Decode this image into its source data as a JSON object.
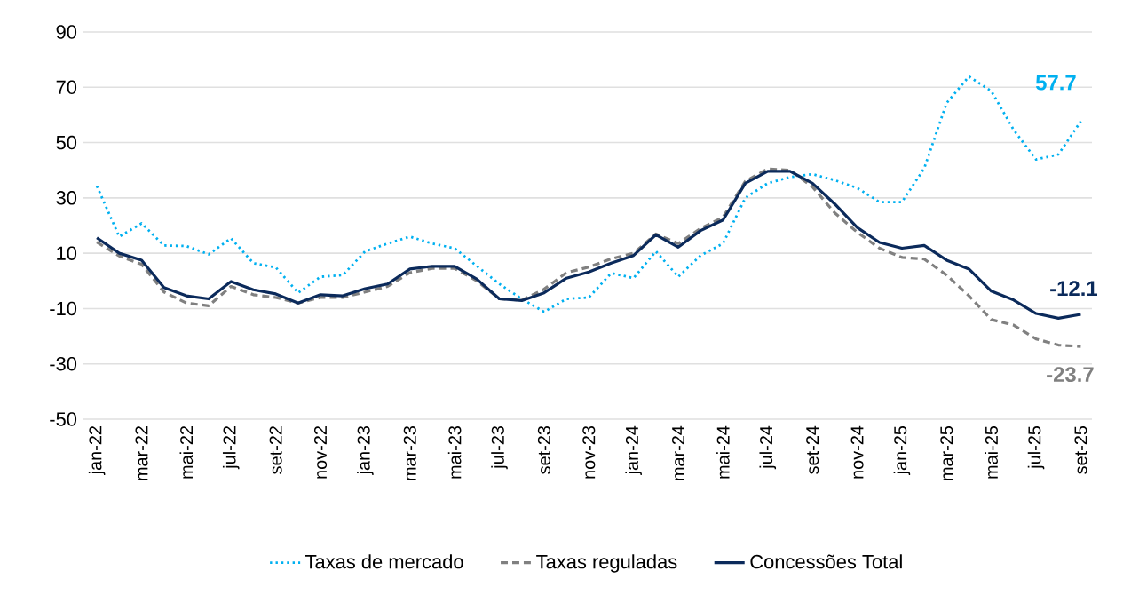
{
  "chart_data": {
    "type": "line",
    "categories": [
      "jan-22",
      null,
      "mar-22",
      null,
      "mai-22",
      null,
      "jul-22",
      null,
      "set-22",
      null,
      "nov-22",
      null,
      "jan-23",
      null,
      "mar-23",
      null,
      "mai-23",
      null,
      "jul-23",
      null,
      "set-23",
      null,
      "nov-23",
      null,
      "jan-24",
      null,
      "mar-24",
      null,
      "mai-24",
      null,
      "jul-24",
      null,
      "set-24",
      null,
      "nov-24",
      null,
      "jan-25",
      null,
      "mar-25",
      null,
      "mai-25",
      null,
      "jul-25",
      null,
      "set-25"
    ],
    "series": [
      {
        "name": "Taxas de mercado",
        "color": "#00b0f0",
        "line_style": "dotted",
        "values": [
          34.3,
          16,
          20.8,
          12.8,
          12.6,
          9.6,
          15.4,
          6.4,
          4.9,
          -4.3,
          1.5,
          2.1,
          10.7,
          13.5,
          16,
          13.5,
          11.8,
          5.3,
          -1.1,
          -6.5,
          -11.2,
          -6.5,
          -6,
          2.8,
          1,
          10.7,
          1.5,
          9.2,
          13.5,
          30,
          35.3,
          37.5,
          38.6,
          36.4,
          33.6,
          28.5,
          28.5,
          40.7,
          64.3,
          73.9,
          68.6,
          54.6,
          43.9,
          45.7,
          57.7
        ]
      },
      {
        "name": "Taxas reguladas",
        "color": "#808080",
        "line_style": "dashed",
        "values": [
          14,
          9,
          6,
          -4,
          -8,
          -9,
          -2,
          -5,
          -6,
          -8,
          -6,
          -6,
          -4,
          -2,
          3,
          4.5,
          4.5,
          0,
          -6.5,
          -7,
          -3,
          3,
          5,
          8,
          10,
          17,
          13.5,
          19,
          23,
          36,
          40.5,
          40,
          34,
          24.6,
          17.6,
          11.8,
          8.5,
          7.9,
          2.1,
          -5.4,
          -14,
          -16,
          -21,
          -23.2,
          -23.7
        ]
      },
      {
        "name": "Concessões  Total",
        "color": "#0b2a5b",
        "line_style": "solid",
        "values": [
          15.6,
          10,
          7.5,
          -2.4,
          -5.4,
          -6.5,
          -0.2,
          -3.2,
          -4.7,
          -8,
          -5,
          -5.4,
          -2.8,
          -1.1,
          4.3,
          5.3,
          5.3,
          0.6,
          -6.5,
          -7.1,
          -4.3,
          1,
          3.2,
          6.4,
          9.2,
          16.7,
          12.2,
          18.2,
          22,
          35.3,
          39.6,
          39.6,
          35.3,
          27.8,
          19.3,
          13.9,
          11.8,
          12.8,
          7.5,
          4.3,
          -3.7,
          -6.9,
          -11.8,
          -13.5,
          -12.1
        ]
      }
    ],
    "annotations": [
      {
        "text": "57.7",
        "x": "set-25",
        "y": 57.7
      },
      {
        "text": "-12.1",
        "x": "set-25",
        "y": -12.1
      },
      {
        "text": "-23.7",
        "x": "set-25",
        "y": -23.7
      }
    ],
    "ylim": [
      -50,
      90
    ],
    "yticks": [
      -50,
      -30,
      -10,
      10,
      30,
      50,
      70,
      90
    ],
    "grid": "y",
    "legend": "bottom",
    "marker": "none"
  }
}
